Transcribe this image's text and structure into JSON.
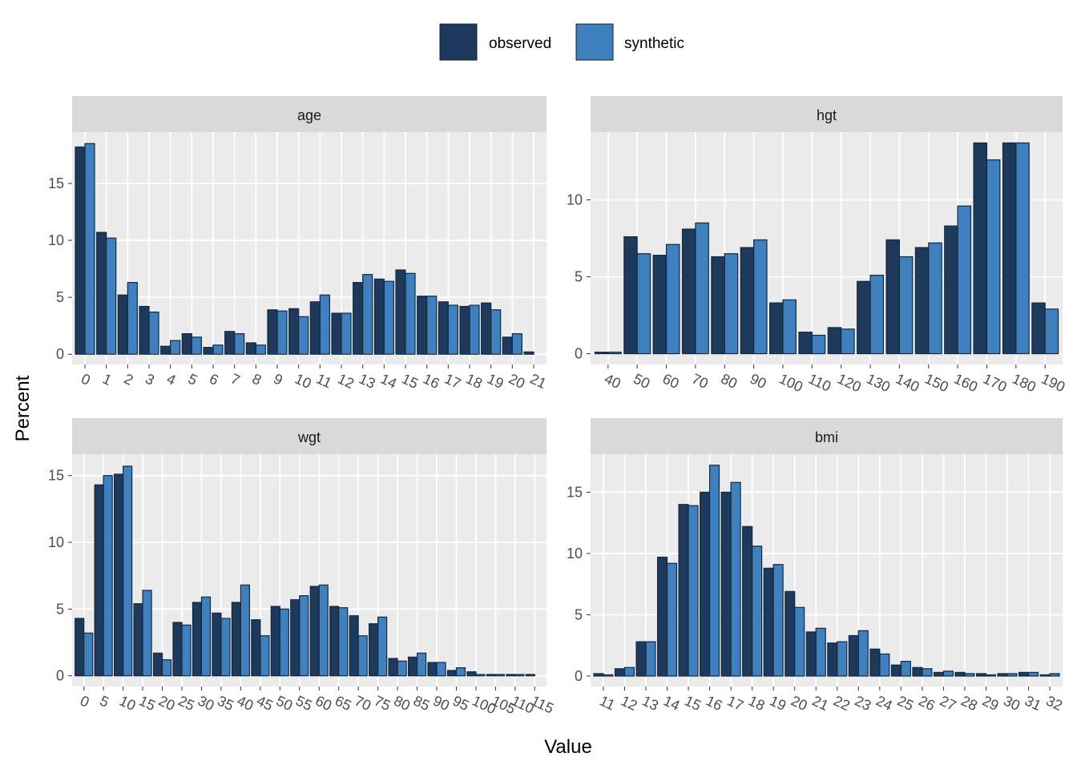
{
  "xlabel": "Value",
  "ylabel": "Percent",
  "chart_data": [
    {
      "type": "bar",
      "title": "age",
      "categories": [
        0,
        1,
        2,
        3,
        4,
        5,
        6,
        7,
        8,
        9,
        10,
        11,
        12,
        13,
        14,
        15,
        16,
        17,
        18,
        19,
        20,
        21
      ],
      "series": [
        {
          "name": "observed",
          "color": "#1d3a5c",
          "values": [
            18.2,
            10.7,
            5.2,
            4.2,
            0.7,
            1.8,
            0.6,
            2.0,
            1.0,
            3.9,
            4.0,
            4.6,
            3.6,
            6.3,
            6.6,
            7.4,
            5.1,
            4.6,
            4.2,
            4.5,
            1.5,
            0.2
          ]
        },
        {
          "name": "synthetic",
          "color": "#3f80be",
          "values": [
            18.5,
            10.2,
            6.3,
            3.7,
            1.2,
            1.5,
            0.8,
            1.8,
            0.8,
            3.8,
            3.3,
            5.2,
            3.6,
            7.0,
            6.4,
            7.1,
            5.1,
            4.3,
            4.3,
            3.9,
            1.8,
            0.0
          ]
        }
      ],
      "ylim": [
        -0.9,
        19.5
      ],
      "yticks": [
        0,
        5,
        10,
        15
      ],
      "grid": true
    },
    {
      "type": "bar",
      "title": "hgt",
      "categories": [
        40,
        50,
        60,
        70,
        80,
        90,
        100,
        110,
        120,
        130,
        140,
        150,
        160,
        170,
        180,
        190
      ],
      "series": [
        {
          "name": "observed",
          "color": "#1d3a5c",
          "values": [
            0.1,
            7.6,
            6.4,
            8.1,
            6.3,
            6.9,
            3.3,
            1.4,
            1.7,
            4.7,
            7.4,
            6.9,
            8.3,
            13.7,
            13.7,
            3.3
          ]
        },
        {
          "name": "synthetic",
          "color": "#3f80be",
          "values": [
            0.1,
            6.5,
            7.1,
            8.5,
            6.5,
            7.4,
            3.5,
            1.2,
            1.6,
            5.1,
            6.3,
            7.2,
            9.6,
            12.6,
            13.7,
            2.9
          ]
        }
      ],
      "ylim": [
        -0.7,
        14.4
      ],
      "yticks": [
        0,
        5,
        10
      ],
      "grid": true
    },
    {
      "type": "bar",
      "title": "wgt",
      "categories": [
        0,
        5,
        10,
        15,
        20,
        25,
        30,
        35,
        40,
        45,
        50,
        55,
        60,
        65,
        70,
        75,
        80,
        85,
        90,
        95,
        100,
        105,
        110,
        115
      ],
      "series": [
        {
          "name": "observed",
          "color": "#1d3a5c",
          "values": [
            4.3,
            14.3,
            15.1,
            5.4,
            1.7,
            4.0,
            5.5,
            4.7,
            5.5,
            4.2,
            5.2,
            5.7,
            6.7,
            5.2,
            4.5,
            3.9,
            1.3,
            1.4,
            1.0,
            0.4,
            0.3,
            0.1,
            0.1,
            0.1
          ]
        },
        {
          "name": "synthetic",
          "color": "#3f80be",
          "values": [
            3.2,
            15.0,
            15.7,
            6.4,
            1.2,
            3.8,
            5.9,
            4.3,
            6.8,
            3.0,
            5.0,
            6.0,
            6.8,
            5.1,
            3.0,
            4.4,
            1.1,
            1.7,
            1.0,
            0.6,
            0.1,
            0.1,
            0.1,
            0.0
          ]
        }
      ],
      "ylim": [
        -0.8,
        16.6
      ],
      "yticks": [
        0,
        5,
        10,
        15
      ],
      "grid": true
    },
    {
      "type": "bar",
      "title": "bmi",
      "categories": [
        11,
        12,
        13,
        14,
        15,
        16,
        17,
        18,
        19,
        20,
        21,
        22,
        23,
        24,
        25,
        26,
        27,
        28,
        29,
        30,
        31,
        32
      ],
      "series": [
        {
          "name": "observed",
          "color": "#1d3a5c",
          "values": [
            0.2,
            0.6,
            2.8,
            9.7,
            14.0,
            15.0,
            15.0,
            12.2,
            8.8,
            6.9,
            3.6,
            2.7,
            3.3,
            2.2,
            0.9,
            0.7,
            0.3,
            0.3,
            0.2,
            0.2,
            0.3,
            0.1
          ]
        },
        {
          "name": "synthetic",
          "color": "#3f80be",
          "values": [
            0.1,
            0.7,
            2.8,
            9.2,
            13.9,
            17.2,
            15.8,
            10.6,
            9.1,
            5.6,
            3.9,
            2.8,
            3.7,
            1.8,
            1.2,
            0.6,
            0.4,
            0.2,
            0.1,
            0.2,
            0.3,
            0.2
          ]
        }
      ],
      "ylim": [
        -0.85,
        18.1
      ],
      "yticks": [
        0,
        5,
        10,
        15
      ],
      "grid": true
    }
  ]
}
